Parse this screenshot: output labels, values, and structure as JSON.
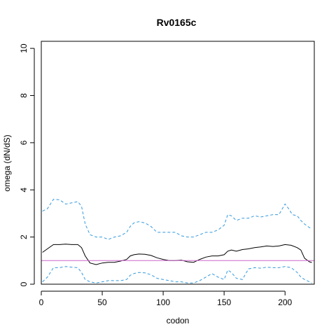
{
  "chart_data": {
    "type": "line",
    "title": "Rv0165c",
    "xlabel": "codon",
    "ylabel": "omega (dN/dS)",
    "xlim": [
      0,
      224
    ],
    "ylim": [
      0,
      10.3
    ],
    "xticks": [
      0,
      50,
      100,
      150,
      200
    ],
    "yticks": [
      0,
      2,
      4,
      6,
      8,
      10
    ],
    "grid": false,
    "legend": "none",
    "reference_line": {
      "y": 1,
      "color": "#cc66cc"
    },
    "series": [
      {
        "style": "solid",
        "color": "#000000",
        "x": [
          1,
          5,
          10,
          15,
          20,
          25,
          30,
          33,
          36,
          40,
          45,
          50,
          55,
          60,
          65,
          70,
          73,
          76,
          80,
          85,
          90,
          95,
          100,
          105,
          110,
          115,
          120,
          125,
          130,
          135,
          140,
          145,
          150,
          153,
          156,
          160,
          165,
          170,
          175,
          180,
          185,
          190,
          195,
          200,
          205,
          210,
          213,
          216,
          220,
          222
        ],
        "y": [
          1.35,
          1.5,
          1.68,
          1.68,
          1.7,
          1.68,
          1.68,
          1.55,
          1.2,
          0.9,
          0.83,
          0.9,
          0.93,
          0.93,
          0.98,
          1.05,
          1.2,
          1.25,
          1.28,
          1.27,
          1.22,
          1.12,
          1.05,
          1.0,
          1.0,
          1.02,
          0.95,
          0.93,
          1.05,
          1.15,
          1.2,
          1.2,
          1.25,
          1.4,
          1.45,
          1.4,
          1.47,
          1.5,
          1.55,
          1.58,
          1.62,
          1.6,
          1.62,
          1.68,
          1.65,
          1.55,
          1.45,
          1.1,
          0.95,
          0.92
        ]
      },
      {
        "style": "dashed",
        "color": "#3399dd",
        "x": [
          1,
          5,
          10,
          15,
          20,
          25,
          30,
          33,
          36,
          40,
          45,
          50,
          55,
          60,
          65,
          70,
          73,
          76,
          80,
          85,
          90,
          95,
          100,
          105,
          110,
          115,
          120,
          125,
          130,
          135,
          140,
          145,
          150,
          153,
          156,
          160,
          165,
          170,
          175,
          180,
          185,
          190,
          195,
          200,
          203,
          206,
          210,
          213,
          216,
          220,
          222
        ],
        "y": [
          3.1,
          3.2,
          3.6,
          3.58,
          3.4,
          3.45,
          3.5,
          3.3,
          2.55,
          2.1,
          2.0,
          2.0,
          1.9,
          2.0,
          2.05,
          2.2,
          2.45,
          2.6,
          2.65,
          2.6,
          2.45,
          2.2,
          2.2,
          2.2,
          2.2,
          2.05,
          2.0,
          2.0,
          2.1,
          2.2,
          2.2,
          2.3,
          2.5,
          2.95,
          2.9,
          2.7,
          2.8,
          2.8,
          2.9,
          2.85,
          2.9,
          2.95,
          2.95,
          3.4,
          3.2,
          2.95,
          2.9,
          2.7,
          2.55,
          2.4,
          2.38
        ]
      },
      {
        "style": "dashed",
        "color": "#3399dd",
        "x": [
          1,
          5,
          10,
          15,
          20,
          25,
          30,
          33,
          36,
          40,
          45,
          50,
          55,
          60,
          65,
          70,
          73,
          76,
          80,
          85,
          90,
          95,
          100,
          105,
          110,
          115,
          120,
          125,
          130,
          135,
          140,
          145,
          150,
          153,
          156,
          160,
          165,
          170,
          175,
          180,
          185,
          190,
          195,
          200,
          205,
          210,
          213,
          216,
          220,
          222
        ],
        "y": [
          0.1,
          0.3,
          0.7,
          0.7,
          0.75,
          0.72,
          0.7,
          0.5,
          0.2,
          0.1,
          0.05,
          0.1,
          0.15,
          0.15,
          0.15,
          0.2,
          0.38,
          0.45,
          0.5,
          0.48,
          0.4,
          0.25,
          0.2,
          0.15,
          0.1,
          0.1,
          0.05,
          0.05,
          0.15,
          0.3,
          0.45,
          0.3,
          0.2,
          0.6,
          0.5,
          0.25,
          0.2,
          0.65,
          0.7,
          0.68,
          0.72,
          0.7,
          0.7,
          0.75,
          0.7,
          0.5,
          0.3,
          0.2,
          0.1,
          0.05
        ]
      }
    ]
  }
}
